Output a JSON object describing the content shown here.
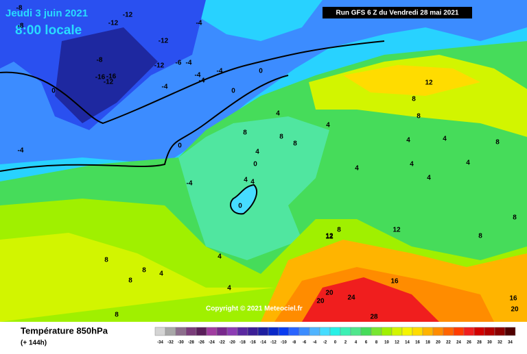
{
  "header": {
    "date": "Jeudi 3 juin 2021",
    "time": "8:00 locale",
    "run": "Run GFS 6 Z du Vendredi 28 mai 2021"
  },
  "map": {
    "copyright": "Copyright © 2021 Meteociel.fr",
    "contour_labels": [
      -8,
      -12,
      -12,
      -8,
      -4,
      -12,
      -8,
      -12,
      -4,
      -6,
      -4,
      -16,
      -16,
      -12,
      -4,
      -4,
      -4,
      0,
      0,
      0,
      -4,
      0,
      -4,
      4,
      8,
      8,
      4,
      4,
      0,
      0,
      4,
      4,
      8,
      12,
      8,
      4,
      4,
      4,
      4,
      4,
      8,
      8,
      12,
      8,
      8,
      12,
      16,
      20,
      20,
      24,
      28,
      16,
      20,
      8,
      8,
      8,
      4,
      8,
      4,
      4,
      4,
      8,
      12
    ]
  },
  "legend": {
    "title": "Température 850hPa",
    "subtitle": "(+ 144h)",
    "ticks": [
      -34,
      -32,
      -30,
      -28,
      -26,
      -24,
      -22,
      -20,
      -18,
      -16,
      -14,
      -12,
      -10,
      -8,
      -6,
      -4,
      -2,
      0,
      2,
      4,
      6,
      8,
      10,
      12,
      14,
      16,
      18,
      20,
      22,
      24,
      26,
      28,
      30,
      32,
      34
    ],
    "colors": [
      "#d4d4d4",
      "#a8a8a8",
      "#8c6e8c",
      "#7a3c7a",
      "#5a1e5a",
      "#a03ca0",
      "#78288c",
      "#8c3cb4",
      "#5a28a0",
      "#3c1e96",
      "#1e1ea0",
      "#0a28c8",
      "#0a3cf0",
      "#2a64ff",
      "#3c8cff",
      "#50b4ff",
      "#46dcff",
      "#28f0e6",
      "#3cf0b4",
      "#50e68c",
      "#46dc5a",
      "#78e632",
      "#a0f000",
      "#d2f500",
      "#f5f500",
      "#ffdc00",
      "#ffb400",
      "#ff8c00",
      "#ff6400",
      "#ff3c00",
      "#f01e1e",
      "#d20000",
      "#b40000",
      "#8c0000",
      "#500000"
    ]
  }
}
